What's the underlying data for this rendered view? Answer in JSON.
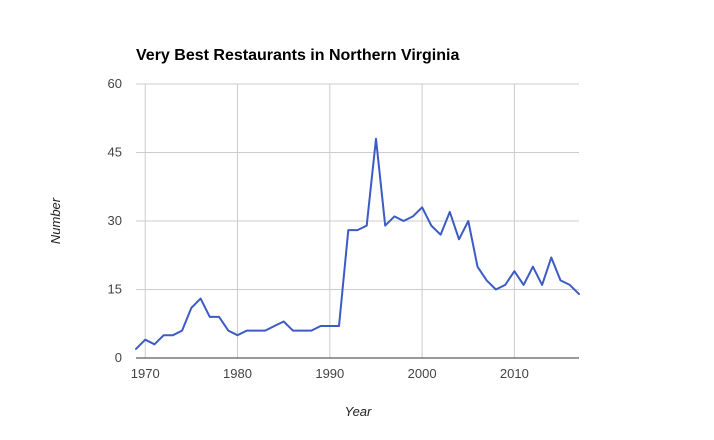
{
  "chart_data": {
    "type": "line",
    "title": "Very Best Restaurants in Northern Virginia",
    "xlabel": "Year",
    "ylabel": "Number",
    "xlim": [
      1969,
      2017
    ],
    "ylim": [
      0,
      60
    ],
    "xticks": [
      "1970",
      "1980",
      "1990",
      "2000",
      "2010"
    ],
    "yticks": [
      "0",
      "15",
      "30",
      "45",
      "60"
    ],
    "grid": true,
    "legend": "none",
    "series": [
      {
        "color": "#3c5bc4",
        "x": [
          1969,
          1970,
          1971,
          1972,
          1973,
          1974,
          1975,
          1976,
          1977,
          1978,
          1979,
          1980,
          1981,
          1982,
          1983,
          1984,
          1985,
          1986,
          1987,
          1988,
          1989,
          1990,
          1991,
          1992,
          1993,
          1994,
          1995,
          1996,
          1997,
          1998,
          1999,
          2000,
          2001,
          2002,
          2003,
          2004,
          2005,
          2006,
          2007,
          2008,
          2009,
          2010,
          2011,
          2012,
          2013,
          2014,
          2015,
          2016,
          2017
        ],
        "y": [
          2,
          4,
          3,
          5,
          5,
          6,
          11,
          13,
          9,
          9,
          6,
          5,
          6,
          6,
          6,
          7,
          8,
          6,
          6,
          6,
          7,
          7,
          7,
          28,
          28,
          29,
          48,
          29,
          31,
          30,
          31,
          33,
          29,
          27,
          32,
          26,
          30,
          20,
          17,
          15,
          16,
          19,
          16,
          20,
          16,
          22,
          17,
          16,
          14
        ]
      }
    ]
  }
}
